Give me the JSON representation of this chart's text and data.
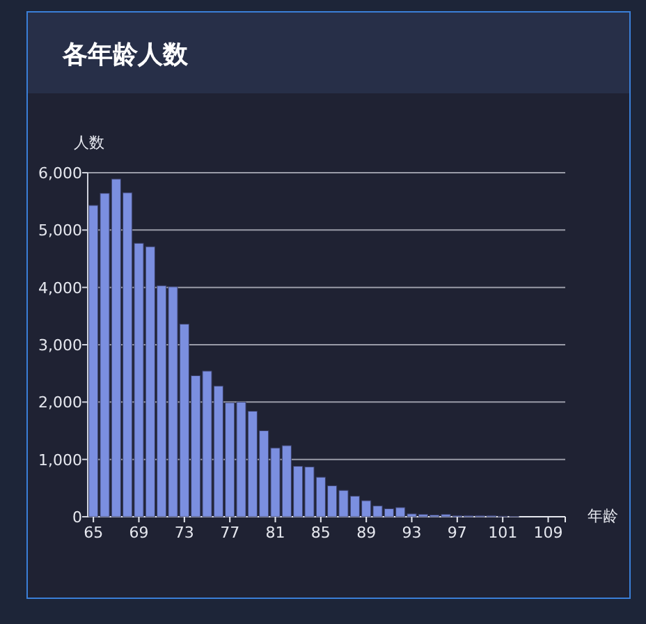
{
  "chart_data": {
    "type": "bar",
    "title": "各年龄人数",
    "xlabel": "年龄",
    "ylabel": "人数",
    "categories": [
      "65",
      null,
      null,
      null,
      "69",
      null,
      null,
      null,
      "73",
      null,
      null,
      null,
      "77",
      null,
      null,
      null,
      "81",
      null,
      null,
      null,
      "85",
      null,
      null,
      null,
      "89",
      null,
      null,
      null,
      "93",
      null,
      null,
      null,
      "97",
      null,
      null,
      null,
      "101",
      null,
      null,
      null,
      "109",
      null
    ],
    "values": [
      5430,
      5640,
      5890,
      5650,
      4770,
      4710,
      4030,
      4010,
      3360,
      2460,
      2540,
      2280,
      1990,
      2000,
      1840,
      1500,
      1200,
      1240,
      880,
      870,
      690,
      540,
      460,
      360,
      280,
      190,
      140,
      160,
      50,
      40,
      30,
      40,
      20,
      20,
      20,
      20,
      10,
      5,
      0,
      0,
      0,
      0
    ],
    "color": "#7b8fe0",
    "ylim": [
      0,
      6000
    ],
    "yticks": [
      {
        "value": 0,
        "label": "0"
      },
      {
        "value": 1000,
        "label": "1,000"
      },
      {
        "value": 2000,
        "label": "2,000"
      },
      {
        "value": 3000,
        "label": "3,000"
      },
      {
        "value": 4000,
        "label": "4,000"
      },
      {
        "value": 5000,
        "label": "5,000"
      },
      {
        "value": 6000,
        "label": "6,000"
      }
    ],
    "grid": "y"
  }
}
